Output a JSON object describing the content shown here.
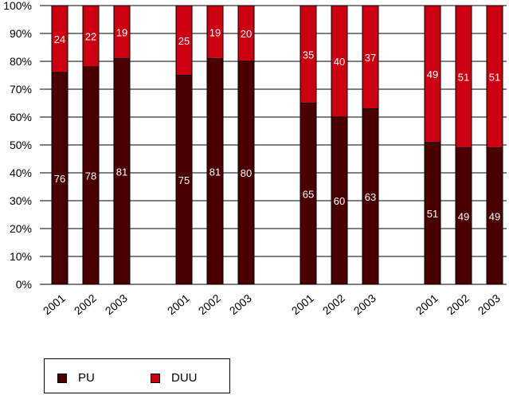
{
  "chart_data": {
    "type": "bar",
    "stacked": true,
    "groups": [
      [
        "2001",
        "2002",
        "2003"
      ],
      [
        "2001",
        "2002",
        "2003"
      ],
      [
        "2001",
        "2002",
        "2003"
      ],
      [
        "2001",
        "2002",
        "2003"
      ]
    ],
    "series": [
      {
        "name": "PU",
        "color": "#4a0000",
        "values": [
          76,
          78,
          81,
          75,
          81,
          80,
          65,
          60,
          63,
          51,
          49,
          49
        ]
      },
      {
        "name": "DUU",
        "color": "#cc0011",
        "values": [
          24,
          22,
          19,
          25,
          19,
          20,
          35,
          40,
          37,
          49,
          51,
          51
        ]
      }
    ],
    "ylim": [
      0,
      100
    ],
    "yticks": [
      "0%",
      "10%",
      "20%",
      "30%",
      "40%",
      "50%",
      "60%",
      "70%",
      "80%",
      "90%",
      "100%"
    ],
    "grid": "horizontal",
    "legend_position": "bottom-left"
  },
  "legend": {
    "items": [
      {
        "label": "PU",
        "color": "#4a0000"
      },
      {
        "label": "DUU",
        "color": "#cc0011"
      }
    ]
  }
}
